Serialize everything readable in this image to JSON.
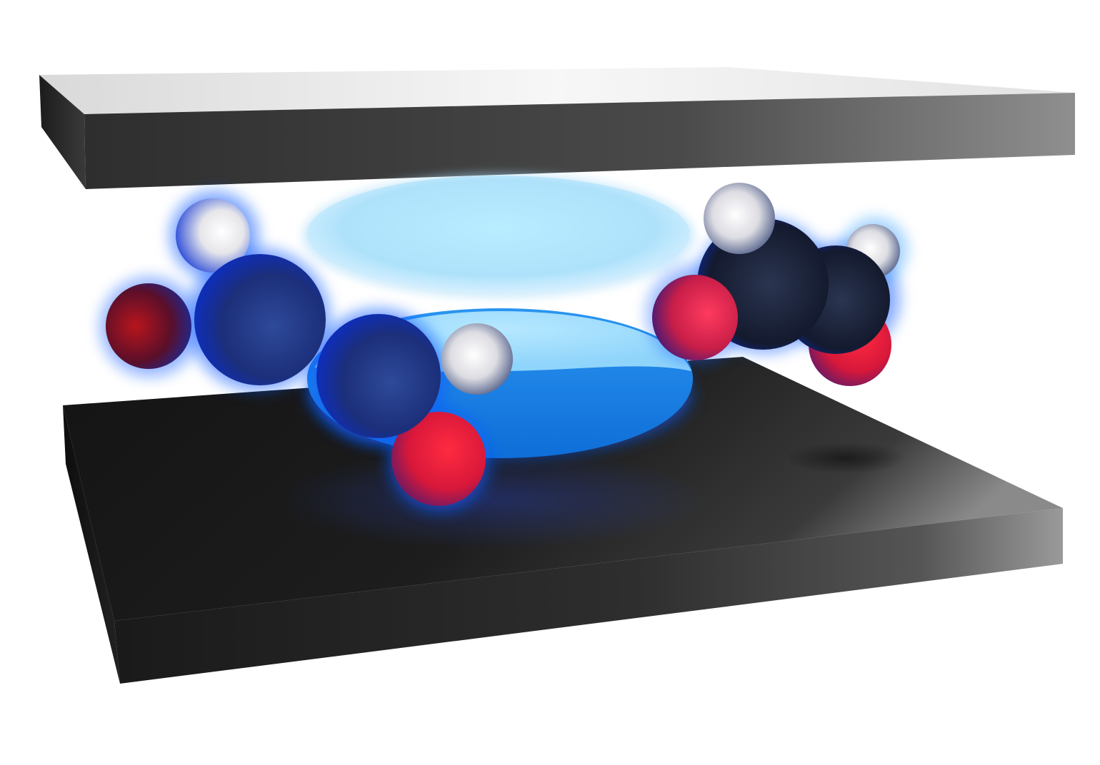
{
  "scene": {
    "background_color": "#ffffff",
    "plates": [
      {
        "name": "top-plate",
        "front_color": "#3a3a3a",
        "top_color": "#f2f2f2",
        "highlight_color": "#8c8c8c"
      },
      {
        "name": "bottom-plate",
        "front_color": "#202020",
        "top_color": "#1a1a1a",
        "highlight_color": "#8a8a8a"
      }
    ],
    "cavity_mode": {
      "upper_lobe_color": "#b4e6fb",
      "lower_lobe_color": "#1587ea",
      "glow_color": "#0a5cff"
    },
    "molecules": [
      {
        "name": "left-molecule",
        "atoms": [
          {
            "element": "H",
            "color": "#e8e8ee"
          },
          {
            "element": "C",
            "color": "#1c2e78"
          },
          {
            "element": "O",
            "color": "#c0182a"
          },
          {
            "element": "C",
            "color": "#1c2e78"
          },
          {
            "element": "H",
            "color": "#e8e8ee"
          },
          {
            "element": "O",
            "color": "#e0304a"
          }
        ]
      },
      {
        "name": "right-molecule",
        "atoms": [
          {
            "element": "H",
            "color": "#e8e8ee"
          },
          {
            "element": "C",
            "color": "#1e2a4a"
          },
          {
            "element": "O",
            "color": "#e03058"
          },
          {
            "element": "C",
            "color": "#1e2a4a"
          },
          {
            "element": "H",
            "color": "#e8e8ee"
          },
          {
            "element": "O",
            "color": "#e02840"
          }
        ]
      }
    ]
  }
}
